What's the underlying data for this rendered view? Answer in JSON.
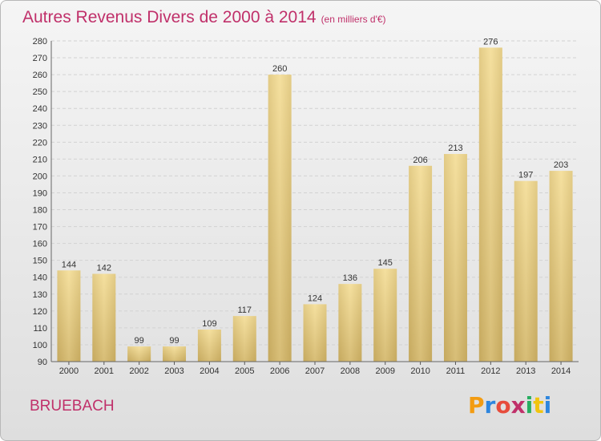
{
  "title": "Autres Revenus Divers de 2000 à 2014",
  "subtitle": "(en milliers d'€)",
  "location": "BRUEBACH",
  "logo": {
    "letters": [
      "P",
      "r",
      "o",
      "x",
      "i",
      "t",
      "i"
    ],
    "colors": [
      "#f39c12",
      "#2e86de",
      "#e74c3c",
      "#c0306a",
      "#27ae60",
      "#f1c40f",
      "#2e86de"
    ]
  },
  "chart_data": {
    "type": "bar",
    "categories": [
      "2000",
      "2001",
      "2002",
      "2003",
      "2004",
      "2005",
      "2006",
      "2007",
      "2008",
      "2009",
      "2010",
      "2011",
      "2012",
      "2013",
      "2014"
    ],
    "values": [
      144,
      142,
      99,
      99,
      109,
      117,
      260,
      124,
      136,
      145,
      206,
      213,
      276,
      197,
      203
    ],
    "ylim": [
      90,
      280
    ],
    "yticks": [
      90,
      100,
      110,
      120,
      130,
      140,
      150,
      160,
      170,
      180,
      190,
      200,
      210,
      220,
      230,
      240,
      250,
      260,
      270,
      280
    ],
    "grid": true,
    "bar_color_light": "#f5df9c",
    "bar_color_dark": "#c4a75c"
  }
}
